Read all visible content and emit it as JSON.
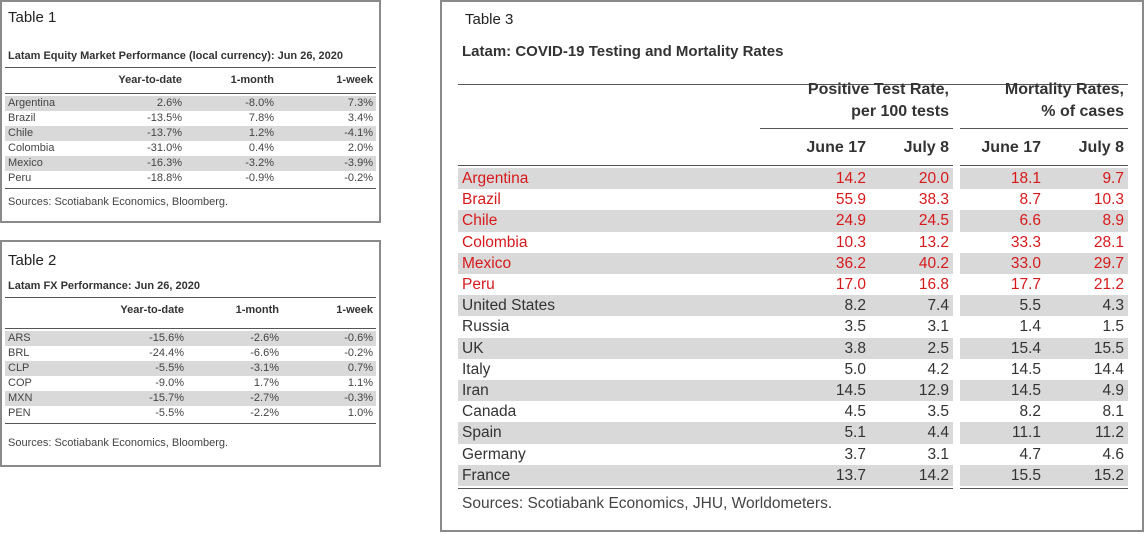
{
  "tables": [
    {
      "label": "Table 1",
      "title": "Latam Equity Market Performance (local currency): Jun 26, 2020",
      "columns": [
        "Year-to-date",
        "1-month",
        "1-week"
      ],
      "rows": [
        [
          "Argentina",
          "2.6%",
          "-8.0%",
          "7.3%"
        ],
        [
          "Brazil",
          "-13.5%",
          "7.8%",
          "3.4%"
        ],
        [
          "Chile",
          "-13.7%",
          "1.2%",
          "-4.1%"
        ],
        [
          "Colombia",
          "-31.0%",
          "0.4%",
          "2.0%"
        ],
        [
          "Mexico",
          "-16.3%",
          "-3.2%",
          "-3.9%"
        ],
        [
          "Peru",
          "-18.8%",
          "-0.9%",
          "-0.2%"
        ]
      ],
      "source": "Sources: Scotiabank Economics, Bloomberg."
    },
    {
      "label": "Table 2",
      "title": "Latam FX Performance: Jun 26, 2020",
      "columns": [
        "Year-to-date",
        "1-month",
        "1-week"
      ],
      "rows": [
        [
          "ARS",
          "-15.6%",
          "-2.6%",
          "-0.6%"
        ],
        [
          "BRL",
          "-24.4%",
          "-6.6%",
          "-0.2%"
        ],
        [
          "CLP",
          "-5.5%",
          "-3.1%",
          "0.7%"
        ],
        [
          "COP",
          "-9.0%",
          "1.7%",
          "1.1%"
        ],
        [
          "MXN",
          "-15.7%",
          "-2.7%",
          "-0.3%"
        ],
        [
          "PEN",
          "-5.5%",
          "-2.2%",
          "1.0%"
        ]
      ],
      "source": "Sources: Scotiabank Economics, Bloomberg."
    },
    {
      "label": "Table 3",
      "title": "Latam: COVID-19 Testing and Mortality Rates",
      "groups": [
        "Positive Test Rate,\nper 100 tests",
        "Mortality Rates,\n% of cases"
      ],
      "columns": [
        "June 17",
        "July 8",
        "June 17",
        "July 8"
      ],
      "rows": [
        [
          "Argentina",
          "14.2",
          "20.0",
          "18.1",
          "9.7"
        ],
        [
          "Brazil",
          "55.9",
          "38.3",
          "8.7",
          "10.3"
        ],
        [
          "Chile",
          "24.9",
          "24.5",
          "6.6",
          "8.9"
        ],
        [
          "Colombia",
          "10.3",
          "13.2",
          "33.3",
          "28.1"
        ],
        [
          "Mexico",
          "36.2",
          "40.2",
          "33.0",
          "29.7"
        ],
        [
          "Peru",
          "17.0",
          "16.8",
          "17.7",
          "21.2"
        ],
        [
          "United States",
          "8.2",
          "7.4",
          "5.5",
          "4.3"
        ],
        [
          "Russia",
          "3.5",
          "3.1",
          "1.4",
          "1.5"
        ],
        [
          "UK",
          "3.8",
          "2.5",
          "15.4",
          "15.5"
        ],
        [
          "Italy",
          "5.0",
          "4.2",
          "14.5",
          "14.4"
        ],
        [
          "Iran",
          "14.5",
          "12.9",
          "14.5",
          "4.9"
        ],
        [
          "Canada",
          "4.5",
          "3.5",
          "8.2",
          "8.1"
        ],
        [
          "Spain",
          "5.1",
          "4.4",
          "11.1",
          "11.2"
        ],
        [
          "Germany",
          "3.7",
          "3.1",
          "4.7",
          "4.6"
        ],
        [
          "France",
          "13.7",
          "14.2",
          "15.5",
          "15.2"
        ]
      ],
      "source": "Sources: Scotiabank Economics, JHU, Worldometers."
    }
  ]
}
